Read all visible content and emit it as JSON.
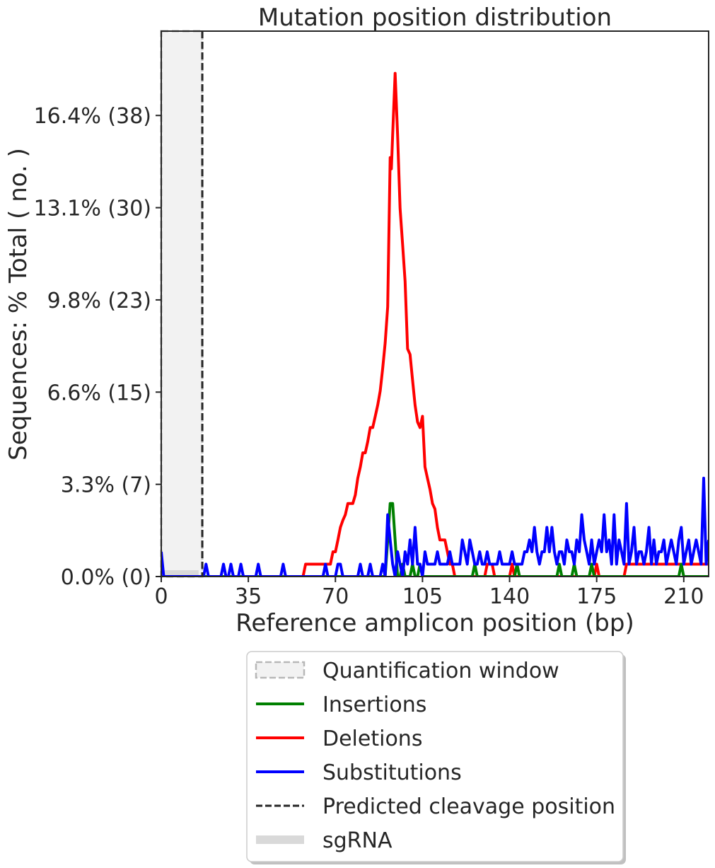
{
  "chart_data": {
    "type": "line",
    "title": "Mutation position distribution",
    "xlabel": "Reference amplicon position (bp)",
    "ylabel": "Sequences: % Total ( no. )",
    "xlim": [
      0,
      220
    ],
    "ylim": [
      0,
      19.4
    ],
    "x_ticks": [
      0,
      35,
      70,
      105,
      140,
      175,
      210
    ],
    "x_tick_labels": [
      "0",
      "35",
      "70",
      "105",
      "140",
      "175",
      "210"
    ],
    "y_ticks": [
      0,
      3.28,
      6.56,
      9.84,
      13.12,
      16.4
    ],
    "y_tick_labels": [
      "0.0% (0)",
      "3.3% (7)",
      "6.6% (15)",
      "9.8% (23)",
      "13.1% (30)",
      "16.4% (38)"
    ],
    "quantification_window": {
      "x_start": 0,
      "x_end": 16.5
    },
    "predicted_cleavage_position": 16.5,
    "sgrna": {
      "x_start": 0,
      "x_end": 15
    },
    "colors": {
      "insertions": "#008000",
      "deletions": "#ff0000",
      "substitutions": "#0000ff",
      "cleavage": "#262626",
      "window_edge": "#b8b8b8",
      "window_fill": "#f2f2f2",
      "sgrna": "#d9d9d9"
    },
    "series": [
      {
        "name": "Deletions",
        "color": "#ff0000",
        "points": [
          [
            0,
            0
          ],
          [
            57,
            0
          ],
          [
            58,
            0.44
          ],
          [
            68,
            0.44
          ],
          [
            69,
            0.88
          ],
          [
            70,
            0.88
          ],
          [
            71,
            1.3
          ],
          [
            72,
            1.75
          ],
          [
            73,
            2.0
          ],
          [
            74,
            2.2
          ],
          [
            75,
            2.6
          ],
          [
            77,
            2.6
          ],
          [
            78,
            2.9
          ],
          [
            79,
            3.5
          ],
          [
            80,
            3.9
          ],
          [
            81,
            4.4
          ],
          [
            82,
            4.4
          ],
          [
            83,
            4.8
          ],
          [
            84,
            5.3
          ],
          [
            85,
            5.3
          ],
          [
            86,
            5.7
          ],
          [
            87,
            6.1
          ],
          [
            88,
            6.6
          ],
          [
            89,
            7.4
          ],
          [
            90,
            8.3
          ],
          [
            91,
            9.6
          ],
          [
            92,
            14.9
          ],
          [
            92.5,
            14.5
          ],
          [
            93,
            15.7
          ],
          [
            94,
            17.9
          ],
          [
            95,
            15.7
          ],
          [
            96,
            13.1
          ],
          [
            97,
            11.8
          ],
          [
            98,
            10.5
          ],
          [
            99,
            8.1
          ],
          [
            100,
            7.9
          ],
          [
            101,
            7.0
          ],
          [
            102,
            6.1
          ],
          [
            103,
            5.5
          ],
          [
            104,
            5.3
          ],
          [
            105,
            5.7
          ],
          [
            106,
            3.9
          ],
          [
            107,
            3.5
          ],
          [
            108,
            3.1
          ],
          [
            109,
            2.6
          ],
          [
            110,
            2.4
          ],
          [
            111,
            1.75
          ],
          [
            112,
            1.3
          ],
          [
            113,
            1.3
          ],
          [
            114,
            1.3
          ],
          [
            115,
            0.88
          ],
          [
            116,
            0.44
          ],
          [
            117,
            0.44
          ],
          [
            118,
            0
          ],
          [
            130,
            0
          ],
          [
            131,
            0.44
          ],
          [
            133,
            0.44
          ],
          [
            134,
            0
          ],
          [
            140,
            0
          ],
          [
            141,
            0.44
          ],
          [
            142,
            0
          ],
          [
            174,
            0
          ],
          [
            175,
            0.44
          ],
          [
            176,
            0
          ],
          [
            186,
            0
          ],
          [
            187,
            0.44
          ],
          [
            220,
            0.44
          ]
        ]
      },
      {
        "name": "Insertions",
        "color": "#008000",
        "points": [
          [
            0,
            0
          ],
          [
            90,
            0
          ],
          [
            91,
            1.3
          ],
          [
            92,
            2.6
          ],
          [
            93,
            2.6
          ],
          [
            94,
            1.3
          ],
          [
            95,
            0
          ],
          [
            96,
            0
          ],
          [
            97,
            0.44
          ],
          [
            98,
            0
          ],
          [
            100,
            0
          ],
          [
            101,
            0.44
          ],
          [
            102,
            0
          ],
          [
            103,
            0
          ],
          [
            104,
            0.44
          ],
          [
            105,
            0
          ],
          [
            125,
            0
          ],
          [
            126,
            0.44
          ],
          [
            127,
            0
          ],
          [
            142,
            0
          ],
          [
            143,
            0.44
          ],
          [
            144,
            0
          ],
          [
            159,
            0
          ],
          [
            160,
            0.44
          ],
          [
            161,
            0
          ],
          [
            165,
            0
          ],
          [
            166,
            0.44
          ],
          [
            167,
            0
          ],
          [
            172,
            0
          ],
          [
            173,
            0.44
          ],
          [
            174,
            0
          ],
          [
            208,
            0
          ],
          [
            209,
            0.44
          ],
          [
            210,
            0
          ],
          [
            220,
            0
          ]
        ]
      },
      {
        "name": "Substitutions",
        "color": "#0000ff",
        "points": [
          [
            0,
            0.88
          ],
          [
            1,
            0
          ],
          [
            17,
            0
          ],
          [
            18,
            0.44
          ],
          [
            19,
            0
          ],
          [
            24,
            0
          ],
          [
            25,
            0.44
          ],
          [
            26,
            0
          ],
          [
            27,
            0
          ],
          [
            28,
            0.44
          ],
          [
            29,
            0
          ],
          [
            31,
            0
          ],
          [
            32,
            0.44
          ],
          [
            33,
            0
          ],
          [
            38,
            0
          ],
          [
            39,
            0.44
          ],
          [
            40,
            0
          ],
          [
            48,
            0
          ],
          [
            49,
            0.44
          ],
          [
            50,
            0
          ],
          [
            65,
            0
          ],
          [
            66,
            0.44
          ],
          [
            67,
            0
          ],
          [
            70,
            0
          ],
          [
            71,
            0.44
          ],
          [
            72,
            0.44
          ],
          [
            73,
            0
          ],
          [
            79,
            0
          ],
          [
            80,
            0.44
          ],
          [
            81,
            0
          ],
          [
            83,
            0
          ],
          [
            84,
            0.44
          ],
          [
            85,
            0
          ],
          [
            88,
            0
          ],
          [
            89,
            0.44
          ],
          [
            90,
            0
          ],
          [
            91,
            2.2
          ],
          [
            92,
            1.3
          ],
          [
            93,
            0.44
          ],
          [
            94,
            0
          ],
          [
            95,
            0.88
          ],
          [
            96,
            0.44
          ],
          [
            97,
            0
          ],
          [
            98,
            0.88
          ],
          [
            99,
            0.44
          ],
          [
            100,
            1.3
          ],
          [
            101,
            0.44
          ],
          [
            102,
            1.75
          ],
          [
            103,
            0.44
          ],
          [
            104,
            0.44
          ],
          [
            105,
            0
          ],
          [
            106,
            0.88
          ],
          [
            107,
            0.44
          ],
          [
            108,
            0.44
          ],
          [
            109,
            0.44
          ],
          [
            110,
            0.44
          ],
          [
            111,
            0.88
          ],
          [
            112,
            0.44
          ],
          [
            113,
            0.44
          ],
          [
            114,
            0.44
          ],
          [
            115,
            0.44
          ],
          [
            116,
            0.88
          ],
          [
            117,
            0.44
          ],
          [
            118,
            0.44
          ],
          [
            119,
            0.44
          ],
          [
            120,
            0.44
          ],
          [
            121,
            1.3
          ],
          [
            122,
            0.88
          ],
          [
            123,
            0.44
          ],
          [
            124,
            1.3
          ],
          [
            125,
            0.88
          ],
          [
            126,
            0.44
          ],
          [
            127,
            0.44
          ],
          [
            128,
            0.88
          ],
          [
            129,
            0.44
          ],
          [
            130,
            0.44
          ],
          [
            131,
            0.88
          ],
          [
            132,
            0.44
          ],
          [
            133,
            0.44
          ],
          [
            134,
            0.44
          ],
          [
            135,
            0.44
          ],
          [
            136,
            0.88
          ],
          [
            137,
            0.44
          ],
          [
            138,
            0.44
          ],
          [
            139,
            0.44
          ],
          [
            140,
            0.44
          ],
          [
            141,
            0.88
          ],
          [
            142,
            0.44
          ],
          [
            143,
            0.44
          ],
          [
            144,
            0.44
          ],
          [
            145,
            0.44
          ],
          [
            146,
            0.88
          ],
          [
            147,
            0.88
          ],
          [
            148,
            1.3
          ],
          [
            149,
            0.88
          ],
          [
            150,
            1.75
          ],
          [
            151,
            0.88
          ],
          [
            152,
            0.44
          ],
          [
            153,
            0.88
          ],
          [
            154,
            0.88
          ],
          [
            155,
            1.75
          ],
          [
            156,
            0.88
          ],
          [
            157,
            1.75
          ],
          [
            158,
            0.88
          ],
          [
            159,
            0.44
          ],
          [
            160,
            0.88
          ],
          [
            161,
            0.88
          ],
          [
            162,
            0.44
          ],
          [
            163,
            1.3
          ],
          [
            164,
            0.88
          ],
          [
            165,
            0.88
          ],
          [
            166,
            0.44
          ],
          [
            167,
            1.3
          ],
          [
            168,
            0.88
          ],
          [
            169,
            2.2
          ],
          [
            170,
            1.3
          ],
          [
            171,
            0.88
          ],
          [
            172,
            0.44
          ],
          [
            173,
            1.3
          ],
          [
            174,
            0.44
          ],
          [
            175,
            0.88
          ],
          [
            176,
            1.3
          ],
          [
            177,
            0.88
          ],
          [
            178,
            2.2
          ],
          [
            179,
            0.88
          ],
          [
            180,
            1.3
          ],
          [
            181,
            0.44
          ],
          [
            182,
            2.2
          ],
          [
            183,
            0.44
          ],
          [
            184,
            1.3
          ],
          [
            185,
            0.88
          ],
          [
            186,
            0.44
          ],
          [
            187,
            2.6
          ],
          [
            188,
            0.44
          ],
          [
            189,
            0.88
          ],
          [
            190,
            1.75
          ],
          [
            191,
            0.44
          ],
          [
            192,
            0.88
          ],
          [
            193,
            0.88
          ],
          [
            194,
            0.44
          ],
          [
            195,
            0.88
          ],
          [
            196,
            1.75
          ],
          [
            197,
            0.44
          ],
          [
            198,
            1.3
          ],
          [
            199,
            0.44
          ],
          [
            200,
            0.88
          ],
          [
            201,
            0.88
          ],
          [
            202,
            1.3
          ],
          [
            203,
            0.44
          ],
          [
            204,
            0.88
          ],
          [
            205,
            1.3
          ],
          [
            206,
            0.88
          ],
          [
            207,
            0.44
          ],
          [
            208,
            1.3
          ],
          [
            209,
            1.75
          ],
          [
            210,
            0.44
          ],
          [
            211,
            0.88
          ],
          [
            212,
            1.3
          ],
          [
            213,
            0.44
          ],
          [
            214,
            0.88
          ],
          [
            215,
            1.3
          ],
          [
            216,
            0.88
          ],
          [
            217,
            0.44
          ],
          [
            218,
            3.5
          ],
          [
            219,
            0.44
          ],
          [
            220,
            1.3
          ]
        ]
      }
    ],
    "legend": {
      "placement": "bottom-center",
      "entries": [
        {
          "label": "Quantification window",
          "kind": "patch",
          "name": "legend-quantification-window"
        },
        {
          "label": "Insertions",
          "kind": "line",
          "color": "#008000",
          "name": "legend-insertions"
        },
        {
          "label": "Deletions",
          "kind": "line",
          "color": "#ff0000",
          "name": "legend-deletions"
        },
        {
          "label": "Substitutions",
          "kind": "line",
          "color": "#0000ff",
          "name": "legend-substitutions"
        },
        {
          "label": "Predicted cleavage position",
          "kind": "dashed",
          "color": "#262626",
          "name": "legend-cleavage"
        },
        {
          "label": "sgRNA",
          "kind": "thick",
          "color": "#d9d9d9",
          "name": "legend-sgrna"
        }
      ]
    }
  }
}
